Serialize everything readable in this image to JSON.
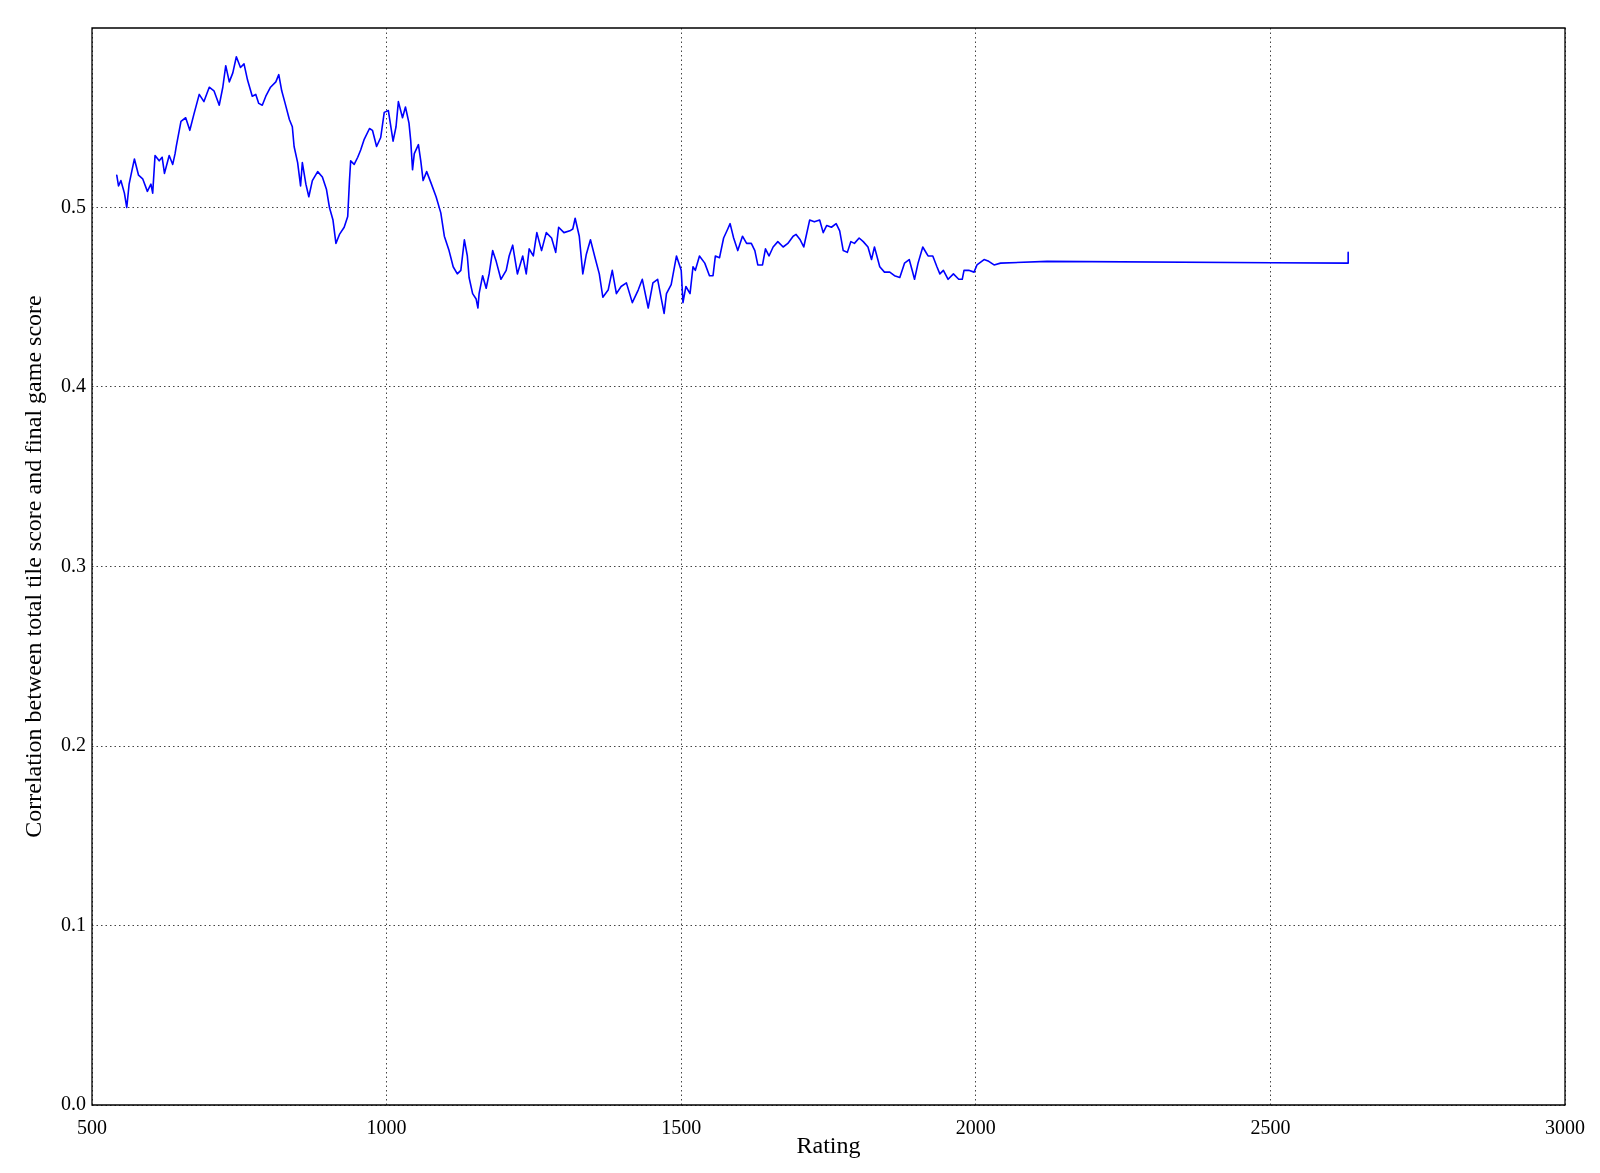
{
  "chart_data": {
    "type": "line",
    "xlabel": "Rating",
    "ylabel": "Correlation between total tile score and final game score",
    "x": [
      542,
      545,
      549,
      555,
      559,
      563,
      568,
      572,
      579,
      586,
      594,
      600,
      603,
      607,
      614,
      619,
      623,
      631,
      637,
      641,
      643,
      651,
      659,
      666,
      673,
      682,
      690,
      699,
      707,
      716,
      722,
      727,
      733,
      739,
      745,
      752,
      758,
      764,
      772,
      778,
      783,
      789,
      795,
      803,
      812,
      817,
      822,
      827,
      835,
      840,
      843,
      849,
      854,
      857,
      863,
      868,
      874,
      883,
      891,
      898,
      903,
      909,
      914,
      920,
      928,
      934,
      937,
      939,
      945,
      951,
      956,
      962,
      971,
      976,
      983,
      990,
      996,
      1003,
      1011,
      1016,
      1020,
      1027,
      1032,
      1038,
      1041,
      1044,
      1047,
      1054,
      1058,
      1062,
      1068,
      1075,
      1084,
      1092,
      1098,
      1106,
      1113,
      1120,
      1126,
      1132,
      1137,
      1140,
      1146,
      1152,
      1155,
      1157,
      1163,
      1169,
      1174,
      1180,
      1186,
      1194,
      1203,
      1208,
      1214,
      1222,
      1231,
      1237,
      1242,
      1249,
      1255,
      1263,
      1271,
      1280,
      1287,
      1292,
      1301,
      1311,
      1316,
      1320,
      1327,
      1333,
      1339,
      1346,
      1353,
      1361,
      1367,
      1376,
      1383,
      1390,
      1398,
      1407,
      1417,
      1427,
      1434,
      1444,
      1452,
      1460,
      1471,
      1475,
      1483,
      1492,
      1500,
      1503,
      1508,
      1515,
      1520,
      1524,
      1531,
      1540,
      1548,
      1554,
      1558,
      1565,
      1572,
      1579,
      1583,
      1589,
      1596,
      1604,
      1611,
      1619,
      1625,
      1630,
      1638,
      1643,
      1649,
      1656,
      1664,
      1673,
      1681,
      1690,
      1695,
      1702,
      1708,
      1718,
      1726,
      1735,
      1741,
      1747,
      1755,
      1763,
      1769,
      1775,
      1782,
      1788,
      1794,
      1802,
      1809,
      1817,
      1823,
      1828,
      1837,
      1845,
      1854,
      1862,
      1871,
      1879,
      1887,
      1892,
      1896,
      1902,
      1910,
      1919,
      1927,
      1934,
      1939,
      1945,
      1953,
      1962,
      1971,
      1977,
      1980,
      1988,
      1997,
      2002,
      2014,
      2022,
      2031,
      2042,
      2121,
      2632,
      2632
    ],
    "values": [
      0.518,
      0.512,
      0.515,
      0.508,
      0.5,
      0.513,
      0.521,
      0.527,
      0.518,
      0.516,
      0.509,
      0.513,
      0.508,
      0.529,
      0.526,
      0.528,
      0.519,
      0.529,
      0.524,
      0.53,
      0.534,
      0.548,
      0.55,
      0.543,
      0.552,
      0.563,
      0.559,
      0.567,
      0.565,
      0.557,
      0.567,
      0.579,
      0.57,
      0.575,
      0.584,
      0.578,
      0.58,
      0.571,
      0.562,
      0.563,
      0.558,
      0.557,
      0.562,
      0.567,
      0.57,
      0.574,
      0.565,
      0.559,
      0.549,
      0.545,
      0.534,
      0.525,
      0.512,
      0.525,
      0.513,
      0.506,
      0.515,
      0.52,
      0.517,
      0.51,
      0.5,
      0.493,
      0.48,
      0.485,
      0.489,
      0.495,
      0.515,
      0.526,
      0.524,
      0.528,
      0.532,
      0.538,
      0.544,
      0.543,
      0.534,
      0.539,
      0.553,
      0.554,
      0.537,
      0.545,
      0.559,
      0.55,
      0.556,
      0.547,
      0.537,
      0.521,
      0.53,
      0.535,
      0.526,
      0.515,
      0.52,
      0.514,
      0.506,
      0.497,
      0.484,
      0.476,
      0.467,
      0.463,
      0.465,
      0.482,
      0.473,
      0.461,
      0.452,
      0.449,
      0.444,
      0.452,
      0.462,
      0.455,
      0.463,
      0.476,
      0.47,
      0.46,
      0.465,
      0.473,
      0.479,
      0.463,
      0.473,
      0.463,
      0.477,
      0.473,
      0.486,
      0.476,
      0.486,
      0.483,
      0.475,
      0.489,
      0.486,
      0.487,
      0.488,
      0.494,
      0.484,
      0.463,
      0.474,
      0.482,
      0.473,
      0.463,
      0.45,
      0.454,
      0.465,
      0.452,
      0.456,
      0.458,
      0.447,
      0.454,
      0.46,
      0.444,
      0.458,
      0.46,
      0.441,
      0.452,
      0.457,
      0.473,
      0.465,
      0.447,
      0.456,
      0.452,
      0.467,
      0.465,
      0.473,
      0.469,
      0.462,
      0.462,
      0.473,
      0.472,
      0.483,
      0.488,
      0.491,
      0.483,
      0.476,
      0.484,
      0.48,
      0.48,
      0.476,
      0.468,
      0.468,
      0.477,
      0.473,
      0.478,
      0.481,
      0.478,
      0.48,
      0.484,
      0.485,
      0.482,
      0.478,
      0.493,
      0.492,
      0.493,
      0.486,
      0.49,
      0.489,
      0.491,
      0.487,
      0.476,
      0.475,
      0.481,
      0.48,
      0.483,
      0.481,
      0.478,
      0.471,
      0.478,
      0.467,
      0.464,
      0.464,
      0.462,
      0.461,
      0.469,
      0.471,
      0.465,
      0.46,
      0.469,
      0.478,
      0.473,
      0.473,
      0.467,
      0.463,
      0.465,
      0.46,
      0.463,
      0.46,
      0.46,
      0.465,
      0.465,
      0.464,
      0.468,
      0.471,
      0.47,
      0.468,
      0.469,
      0.47,
      0.469,
      0.475
    ],
    "color": "#0000ff",
    "marker": "none",
    "line_style": "solid",
    "xlim": [
      500,
      3000
    ],
    "xticks": [
      500,
      1000,
      1500,
      2000,
      2500,
      3000
    ],
    "ylim": [
      0,
      0.6
    ],
    "yticks": [
      {
        "value": 0,
        "label": "0.0"
      },
      0.1,
      0.2,
      0.3,
      0.4,
      0.5
    ],
    "grid": true
  }
}
